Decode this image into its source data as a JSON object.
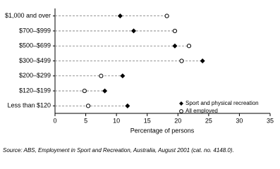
{
  "chart_data": {
    "type": "dot",
    "categories": [
      "$1,000 and over",
      "$700–$999",
      "$500–$699",
      "$300–$499",
      "$200–$299",
      "$120–$199",
      "Less than $120"
    ],
    "series": [
      {
        "name": "Sport and physical recreation",
        "color": "#000000",
        "marker": "diamond",
        "values": [
          10.6,
          12.8,
          19.5,
          24.0,
          11.0,
          8.1,
          11.8
        ]
      },
      {
        "name": "All employed",
        "color": "#000000",
        "marker": "circle",
        "values": [
          18.2,
          19.5,
          21.8,
          20.6,
          7.5,
          4.8,
          5.4
        ]
      }
    ],
    "xlabel": "Percentage of persons",
    "xlim": [
      0,
      35
    ],
    "xticks": [
      0,
      5,
      10,
      15,
      20,
      25,
      30,
      35
    ],
    "legend": "lower right",
    "source": "Source: ABS, Employment in Sport and Recreation, Australia, August 2001 (cat. no. 4148.0)."
  }
}
